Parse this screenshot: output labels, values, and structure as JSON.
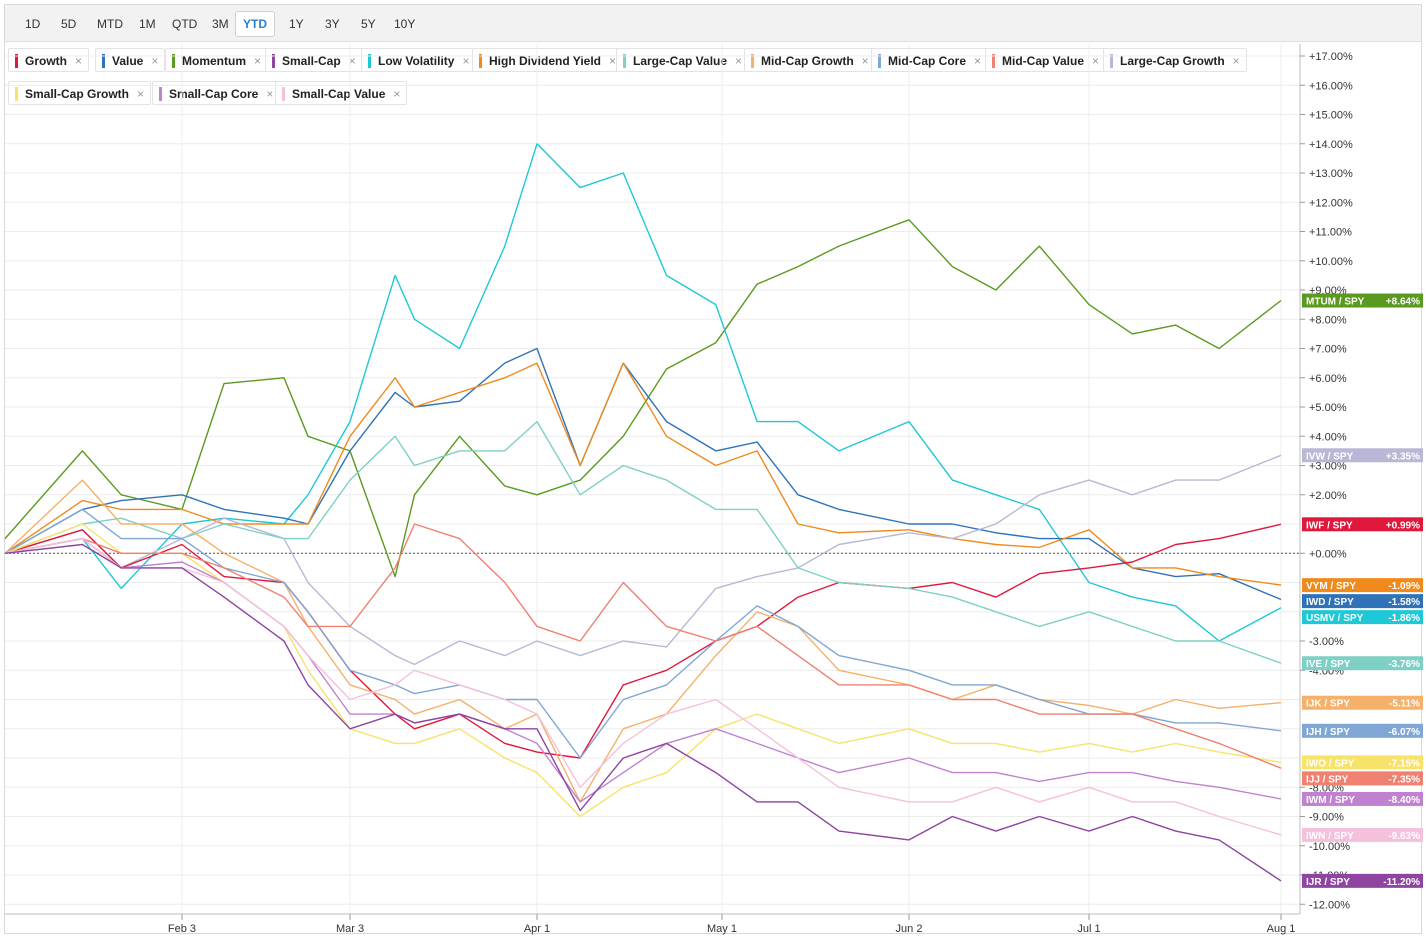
{
  "toolbar": {
    "ranges": [
      "1D",
      "5D",
      "MTD",
      "1M",
      "QTD",
      "3M",
      "YTD",
      "1Y",
      "3Y",
      "5Y",
      "10Y"
    ],
    "active": "YTD"
  },
  "legend": {
    "close_glyph": "×",
    "items": [
      {
        "label": "Growth",
        "color": "#e0193c"
      },
      {
        "label": "Value",
        "color": "#2f72b8"
      },
      {
        "label": "Momentum",
        "color": "#5a9a1e"
      },
      {
        "label": "Small-Cap",
        "color": "#8e44a0"
      },
      {
        "label": "Low Volatility",
        "color": "#1ec8d6"
      },
      {
        "label": "High Dividend Yield",
        "color": "#f08a1c"
      },
      {
        "label": "Large-Cap Value",
        "color": "#7fd0c4"
      },
      {
        "label": "Mid-Cap Growth",
        "color": "#f5b06a"
      },
      {
        "label": "Mid-Cap Core",
        "color": "#7fa6d4"
      },
      {
        "label": "Mid-Cap Value",
        "color": "#f08070"
      },
      {
        "label": "Large-Cap Growth",
        "color": "#b8b8d6"
      },
      {
        "label": "Small-Cap Growth",
        "color": "#f7e36a"
      },
      {
        "label": "Small-Cap Core",
        "color": "#c082d0"
      },
      {
        "label": "Small-Cap Value",
        "color": "#f5c0dc"
      }
    ]
  },
  "chart_data": {
    "type": "line",
    "x_tick_labels": [
      "Feb 3",
      "Mar 3",
      "Apr 1",
      "May 1",
      "Jun 2",
      "Jul 1",
      "Aug 1"
    ],
    "y_tick_labels": [
      "+17.00%",
      "+16.00%",
      "+15.00%",
      "+14.00%",
      "+13.00%",
      "+12.00%",
      "+11.00%",
      "+10.00%",
      "+9.00%",
      "+8.00%",
      "+7.00%",
      "+6.00%",
      "+5.00%",
      "+4.00%",
      "+3.00%",
      "+2.00%",
      "+0.00%",
      "-3.00%",
      "-4.00%",
      "-8.00%",
      "-9.00%",
      "-10.00%",
      "-11.00%",
      "-12.00%"
    ],
    "ylim": [
      -12,
      17
    ],
    "zero_line": "dotted",
    "series": [
      {
        "name": "Momentum",
        "ticker": "MTUM / SPY",
        "end_label": "+8.64%",
        "color": "#5a9a1e",
        "dates": [
          "Jan 2",
          "Jan 16",
          "Jan 23",
          "Feb 3",
          "Feb 10",
          "Feb 20",
          "Feb 24",
          "Mar 3",
          "Mar 10",
          "Mar 13",
          "Mar 20",
          "Mar 27",
          "Apr 1",
          "Apr 8",
          "Apr 15",
          "Apr 22",
          "Apr 30",
          "May 7",
          "May 14",
          "May 21",
          "Jun 2",
          "Jun 9",
          "Jun 16",
          "Jun 23",
          "Jul 1",
          "Jul 8",
          "Jul 15",
          "Jul 22",
          "Aug 1"
        ],
        "values": [
          0.5,
          3.5,
          2.0,
          1.5,
          5.8,
          6.0,
          4.0,
          3.5,
          -0.8,
          2.0,
          4.0,
          2.3,
          2.0,
          2.5,
          4.0,
          6.3,
          7.2,
          9.2,
          9.8,
          10.5,
          11.4,
          9.8,
          9.0,
          10.5,
          8.5,
          7.5,
          7.8,
          7.0,
          8.64
        ]
      },
      {
        "name": "Low Volatility",
        "ticker": "USMV / SPY",
        "end_label": "-1.86%",
        "color": "#1ec8d6",
        "dates": [
          "Jan 2",
          "Jan 16",
          "Jan 23",
          "Feb 3",
          "Feb 10",
          "Feb 20",
          "Feb 24",
          "Mar 3",
          "Mar 10",
          "Mar 13",
          "Mar 20",
          "Mar 27",
          "Apr 1",
          "Apr 8",
          "Apr 15",
          "Apr 22",
          "Apr 30",
          "May 7",
          "May 14",
          "May 21",
          "Jun 2",
          "Jun 9",
          "Jun 16",
          "Jun 23",
          "Jul 1",
          "Jul 8",
          "Jul 15",
          "Jul 22",
          "Aug 1"
        ],
        "values": [
          0,
          0.5,
          -1.2,
          1.0,
          1.2,
          1.0,
          2.0,
          4.5,
          9.5,
          8.0,
          7.0,
          10.5,
          14.0,
          12.5,
          13.0,
          9.5,
          8.5,
          4.5,
          4.5,
          3.5,
          4.5,
          2.5,
          2.0,
          1.5,
          -1.0,
          -1.5,
          -1.8,
          -3.0,
          -1.86
        ]
      },
      {
        "name": "Value",
        "ticker": "IWD / SPY",
        "end_label": "-1.58%",
        "color": "#2f72b8",
        "dates": [
          "Jan 2",
          "Jan 16",
          "Jan 23",
          "Feb 3",
          "Feb 10",
          "Feb 20",
          "Feb 24",
          "Mar 3",
          "Mar 10",
          "Mar 13",
          "Mar 20",
          "Mar 27",
          "Apr 1",
          "Apr 8",
          "Apr 15",
          "Apr 22",
          "Apr 30",
          "May 7",
          "May 14",
          "May 21",
          "Jun 2",
          "Jun 9",
          "Jun 16",
          "Jun 23",
          "Jul 1",
          "Jul 8",
          "Jul 15",
          "Jul 22",
          "Aug 1"
        ],
        "values": [
          0,
          1.5,
          1.8,
          2.0,
          1.5,
          1.2,
          1.0,
          3.5,
          5.5,
          5.0,
          5.2,
          6.5,
          7.0,
          3.0,
          6.5,
          4.5,
          3.5,
          3.8,
          2.0,
          1.5,
          1.0,
          1.0,
          0.7,
          0.5,
          0.5,
          -0.5,
          -0.8,
          -0.7,
          -1.58
        ]
      },
      {
        "name": "High Dividend Yield",
        "ticker": "VYM / SPY",
        "end_label": "-1.09%",
        "color": "#f08a1c",
        "dates": [
          "Jan 2",
          "Jan 16",
          "Jan 23",
          "Feb 3",
          "Feb 10",
          "Feb 20",
          "Feb 24",
          "Mar 3",
          "Mar 10",
          "Mar 13",
          "Mar 20",
          "Mar 27",
          "Apr 1",
          "Apr 8",
          "Apr 15",
          "Apr 22",
          "Apr 30",
          "May 7",
          "May 14",
          "May 21",
          "Jun 2",
          "Jun 9",
          "Jun 16",
          "Jun 23",
          "Jul 1",
          "Jul 8",
          "Jul 15",
          "Jul 22",
          "Aug 1"
        ],
        "values": [
          0,
          1.8,
          1.5,
          1.5,
          1.0,
          1.0,
          1.0,
          4.0,
          6.0,
          5.0,
          5.5,
          6.0,
          6.5,
          3.0,
          6.5,
          4.0,
          3.0,
          3.5,
          1.0,
          0.7,
          0.8,
          0.5,
          0.3,
          0.2,
          0.8,
          -0.5,
          -0.5,
          -0.8,
          -1.09
        ]
      },
      {
        "name": "Large-Cap Growth",
        "ticker": "IVW / SPY",
        "end_label": "+3.35%",
        "color": "#b8b8d6",
        "dates": [
          "Jan 2",
          "Jan 16",
          "Jan 23",
          "Feb 3",
          "Feb 10",
          "Feb 20",
          "Feb 24",
          "Mar 3",
          "Mar 10",
          "Mar 13",
          "Mar 20",
          "Mar 27",
          "Apr 1",
          "Apr 8",
          "Apr 15",
          "Apr 22",
          "Apr 30",
          "May 7",
          "May 14",
          "May 21",
          "Jun 2",
          "Jun 9",
          "Jun 16",
          "Jun 23",
          "Jul 1",
          "Jul 8",
          "Jul 15",
          "Jul 22",
          "Aug 1"
        ],
        "values": [
          0,
          0.8,
          -0.5,
          0.5,
          1.2,
          0.5,
          -1.0,
          -2.5,
          -3.5,
          -3.8,
          -3.0,
          -3.5,
          -3.0,
          -3.5,
          -3.0,
          -3.2,
          -1.2,
          -0.8,
          -0.5,
          0.3,
          0.7,
          0.5,
          1.0,
          2.0,
          2.5,
          2.0,
          2.5,
          2.5,
          3.35
        ]
      },
      {
        "name": "Growth",
        "ticker": "IWF / SPY",
        "end_label": "+0.99%",
        "color": "#e0193c",
        "dates": [
          "Jan 2",
          "Jan 16",
          "Jan 23",
          "Feb 3",
          "Feb 10",
          "Feb 20",
          "Feb 24",
          "Mar 3",
          "Mar 10",
          "Mar 13",
          "Mar 20",
          "Mar 27",
          "Apr 1",
          "Apr 8",
          "Apr 15",
          "Apr 22",
          "Apr 30",
          "May 7",
          "May 14",
          "May 21",
          "Jun 2",
          "Jun 9",
          "Jun 16",
          "Jun 23",
          "Jul 1",
          "Jul 8",
          "Jul 15",
          "Jul 22",
          "Aug 1"
        ],
        "values": [
          0,
          0.8,
          -0.5,
          0.3,
          -0.8,
          -1.0,
          -2.0,
          -4.0,
          -5.5,
          -6.0,
          -5.5,
          -6.5,
          -6.8,
          -7.0,
          -4.5,
          -4.0,
          -3.0,
          -2.5,
          -1.5,
          -1.0,
          -1.2,
          -1.0,
          -1.5,
          -0.7,
          -0.5,
          -0.3,
          0.3,
          0.5,
          0.99
        ]
      },
      {
        "name": "Large-Cap Value",
        "ticker": "IVE / SPY",
        "end_label": "-3.76%",
        "color": "#7fd0c4",
        "dates": [
          "Jan 2",
          "Jan 16",
          "Jan 23",
          "Feb 3",
          "Feb 10",
          "Feb 20",
          "Feb 24",
          "Mar 3",
          "Mar 10",
          "Mar 13",
          "Mar 20",
          "Mar 27",
          "Apr 1",
          "Apr 8",
          "Apr 15",
          "Apr 22",
          "Apr 30",
          "May 7",
          "May 14",
          "May 21",
          "Jun 2",
          "Jun 9",
          "Jun 16",
          "Jun 23",
          "Jul 1",
          "Jul 8",
          "Jul 15",
          "Jul 22",
          "Aug 1"
        ],
        "values": [
          0,
          1.0,
          1.2,
          0.5,
          1.0,
          0.5,
          0.5,
          2.5,
          4.0,
          3.0,
          3.5,
          3.5,
          4.5,
          2.0,
          3.0,
          2.5,
          1.5,
          1.5,
          -0.5,
          -1.0,
          -1.2,
          -1.5,
          -2.0,
          -2.5,
          -2.0,
          -2.5,
          -3.0,
          -3.0,
          -3.76
        ]
      },
      {
        "name": "Mid-Cap Growth",
        "ticker": "IJK / SPY",
        "end_label": "-5.11%",
        "color": "#f5b06a",
        "dates": [
          "Jan 2",
          "Jan 16",
          "Jan 23",
          "Feb 3",
          "Feb 10",
          "Feb 20",
          "Feb 24",
          "Mar 3",
          "Mar 10",
          "Mar 13",
          "Mar 20",
          "Mar 27",
          "Apr 1",
          "Apr 8",
          "Apr 15",
          "Apr 22",
          "Apr 30",
          "May 7",
          "May 14",
          "May 21",
          "Jun 2",
          "Jun 9",
          "Jun 16",
          "Jun 23",
          "Jul 1",
          "Jul 8",
          "Jul 15",
          "Jul 22",
          "Aug 1"
        ],
        "values": [
          0,
          2.5,
          1.0,
          1.0,
          0.0,
          -1.0,
          -2.5,
          -4.5,
          -5.0,
          -5.5,
          -5.0,
          -6.0,
          -5.5,
          -8.5,
          -6.0,
          -5.5,
          -3.5,
          -2.0,
          -2.5,
          -4.0,
          -4.5,
          -5.0,
          -4.5,
          -5.0,
          -5.2,
          -5.5,
          -5.0,
          -5.3,
          -5.11
        ]
      },
      {
        "name": "Mid-Cap Core",
        "ticker": "IJH / SPY",
        "end_label": "-6.07%",
        "color": "#7fa6d4",
        "dates": [
          "Jan 2",
          "Jan 16",
          "Jan 23",
          "Feb 3",
          "Feb 10",
          "Feb 20",
          "Feb 24",
          "Mar 3",
          "Mar 10",
          "Mar 13",
          "Mar 20",
          "Mar 27",
          "Apr 1",
          "Apr 8",
          "Apr 15",
          "Apr 22",
          "Apr 30",
          "May 7",
          "May 14",
          "May 21",
          "Jun 2",
          "Jun 9",
          "Jun 16",
          "Jun 23",
          "Jul 1",
          "Jul 8",
          "Jul 15",
          "Jul 22",
          "Aug 1"
        ],
        "values": [
          0,
          1.5,
          0.5,
          0.5,
          -0.5,
          -1.0,
          -2.0,
          -4.0,
          -4.5,
          -4.8,
          -4.5,
          -5.0,
          -5.0,
          -7.0,
          -5.0,
          -4.5,
          -3.0,
          -1.8,
          -2.5,
          -3.5,
          -4.0,
          -4.5,
          -4.5,
          -5.0,
          -5.5,
          -5.5,
          -5.8,
          -5.8,
          -6.07
        ]
      },
      {
        "name": "Small-Cap Growth",
        "ticker": "IWO / SPY",
        "end_label": "-7.15%",
        "color": "#f7e36a",
        "dates": [
          "Jan 2",
          "Jan 16",
          "Jan 23",
          "Feb 3",
          "Feb 10",
          "Feb 20",
          "Feb 24",
          "Mar 3",
          "Mar 10",
          "Mar 13",
          "Mar 20",
          "Mar 27",
          "Apr 1",
          "Apr 8",
          "Apr 15",
          "Apr 22",
          "Apr 30",
          "May 7",
          "May 14",
          "May 21",
          "Jun 2",
          "Jun 9",
          "Jun 16",
          "Jun 23",
          "Jul 1",
          "Jul 8",
          "Jul 15",
          "Jul 22",
          "Aug 1"
        ],
        "values": [
          0,
          1.0,
          0.0,
          0.0,
          -1.0,
          -2.5,
          -4.0,
          -6.0,
          -6.5,
          -6.5,
          -6.0,
          -7.0,
          -7.5,
          -9.0,
          -8.0,
          -7.5,
          -6.0,
          -5.5,
          -6.0,
          -6.5,
          -6.0,
          -6.5,
          -6.5,
          -6.8,
          -6.5,
          -6.8,
          -6.5,
          -6.8,
          -7.15
        ]
      },
      {
        "name": "Mid-Cap Value",
        "ticker": "IJJ / SPY",
        "end_label": "-7.35%",
        "color": "#f08070",
        "dates": [
          "Jan 2",
          "Jan 16",
          "Jan 23",
          "Feb 3",
          "Feb 10",
          "Feb 20",
          "Feb 24",
          "Mar 3",
          "Mar 10",
          "Mar 13",
          "Mar 20",
          "Mar 27",
          "Apr 1",
          "Apr 8",
          "Apr 15",
          "Apr 22",
          "Apr 30",
          "May 7",
          "May 14",
          "May 21",
          "Jun 2",
          "Jun 9",
          "Jun 16",
          "Jun 23",
          "Jul 1",
          "Jul 8",
          "Jul 15",
          "Jul 22",
          "Aug 1"
        ],
        "values": [
          0,
          0.5,
          0.0,
          0.0,
          -0.5,
          -1.5,
          -2.5,
          -2.5,
          -0.5,
          1.0,
          0.5,
          -1.0,
          -2.5,
          -3.0,
          -1.0,
          -2.5,
          -3.0,
          -2.5,
          -3.5,
          -4.5,
          -4.5,
          -5.0,
          -5.0,
          -5.5,
          -5.5,
          -5.5,
          -6.0,
          -6.5,
          -7.35
        ]
      },
      {
        "name": "Small-Cap Core",
        "ticker": "IWM / SPY",
        "end_label": "-8.40%",
        "color": "#c082d0",
        "dates": [
          "Jan 2",
          "Jan 16",
          "Jan 23",
          "Feb 3",
          "Feb 10",
          "Feb 20",
          "Feb 24",
          "Mar 3",
          "Mar 10",
          "Mar 13",
          "Mar 20",
          "Mar 27",
          "Apr 1",
          "Apr 8",
          "Apr 15",
          "Apr 22",
          "Apr 30",
          "May 7",
          "May 14",
          "May 21",
          "Jun 2",
          "Jun 9",
          "Jun 16",
          "Jun 23",
          "Jul 1",
          "Jul 8",
          "Jul 15",
          "Jul 22",
          "Aug 1"
        ],
        "values": [
          0,
          0.5,
          -0.5,
          -0.3,
          -1.0,
          -2.5,
          -3.5,
          -5.5,
          -5.5,
          -5.8,
          -5.5,
          -6.0,
          -6.5,
          -8.5,
          -7.5,
          -6.5,
          -6.0,
          -6.5,
          -7.0,
          -7.5,
          -7.0,
          -7.5,
          -7.5,
          -7.8,
          -7.5,
          -7.5,
          -7.8,
          -8.0,
          -8.4
        ]
      },
      {
        "name": "Small-Cap Value",
        "ticker": "IWN / SPY",
        "end_label": "-9.63%",
        "color": "#f5c0dc",
        "dates": [
          "Jan 2",
          "Jan 16",
          "Jan 23",
          "Feb 3",
          "Feb 10",
          "Feb 20",
          "Feb 24",
          "Mar 3",
          "Mar 10",
          "Mar 13",
          "Mar 20",
          "Mar 27",
          "Apr 1",
          "Apr 8",
          "Apr 15",
          "Apr 22",
          "Apr 30",
          "May 7",
          "May 14",
          "May 21",
          "Jun 2",
          "Jun 9",
          "Jun 16",
          "Jun 23",
          "Jul 1",
          "Jul 8",
          "Jul 15",
          "Jul 22",
          "Aug 1"
        ],
        "values": [
          0,
          0.5,
          -0.5,
          -0.5,
          -1.0,
          -2.5,
          -3.5,
          -5.0,
          -4.5,
          -4.0,
          -4.5,
          -5.0,
          -5.5,
          -8.0,
          -6.5,
          -5.5,
          -5.0,
          -6.0,
          -7.0,
          -8.0,
          -8.5,
          -8.5,
          -8.0,
          -8.5,
          -8.0,
          -8.5,
          -8.5,
          -9.0,
          -9.63
        ]
      },
      {
        "name": "Small-Cap",
        "ticker": "IJR / SPY",
        "end_label": "-11.20%",
        "color": "#8e44a0",
        "dates": [
          "Jan 2",
          "Jan 16",
          "Jan 23",
          "Feb 3",
          "Feb 10",
          "Feb 20",
          "Feb 24",
          "Mar 3",
          "Mar 10",
          "Mar 13",
          "Mar 20",
          "Mar 27",
          "Apr 1",
          "Apr 8",
          "Apr 15",
          "Apr 22",
          "Apr 30",
          "May 7",
          "May 14",
          "May 21",
          "Jun 2",
          "Jun 9",
          "Jun 16",
          "Jun 23",
          "Jul 1",
          "Jul 8",
          "Jul 15",
          "Jul 22",
          "Aug 1"
        ],
        "values": [
          0,
          0.3,
          -0.5,
          -0.5,
          -1.5,
          -3.0,
          -4.5,
          -6.0,
          -5.5,
          -5.8,
          -5.5,
          -6.0,
          -6.0,
          -8.8,
          -7.0,
          -6.5,
          -7.5,
          -8.5,
          -8.5,
          -9.5,
          -9.8,
          -9.0,
          -9.5,
          -9.0,
          -9.5,
          -9.0,
          -9.5,
          -9.8,
          -11.2
        ]
      }
    ]
  }
}
